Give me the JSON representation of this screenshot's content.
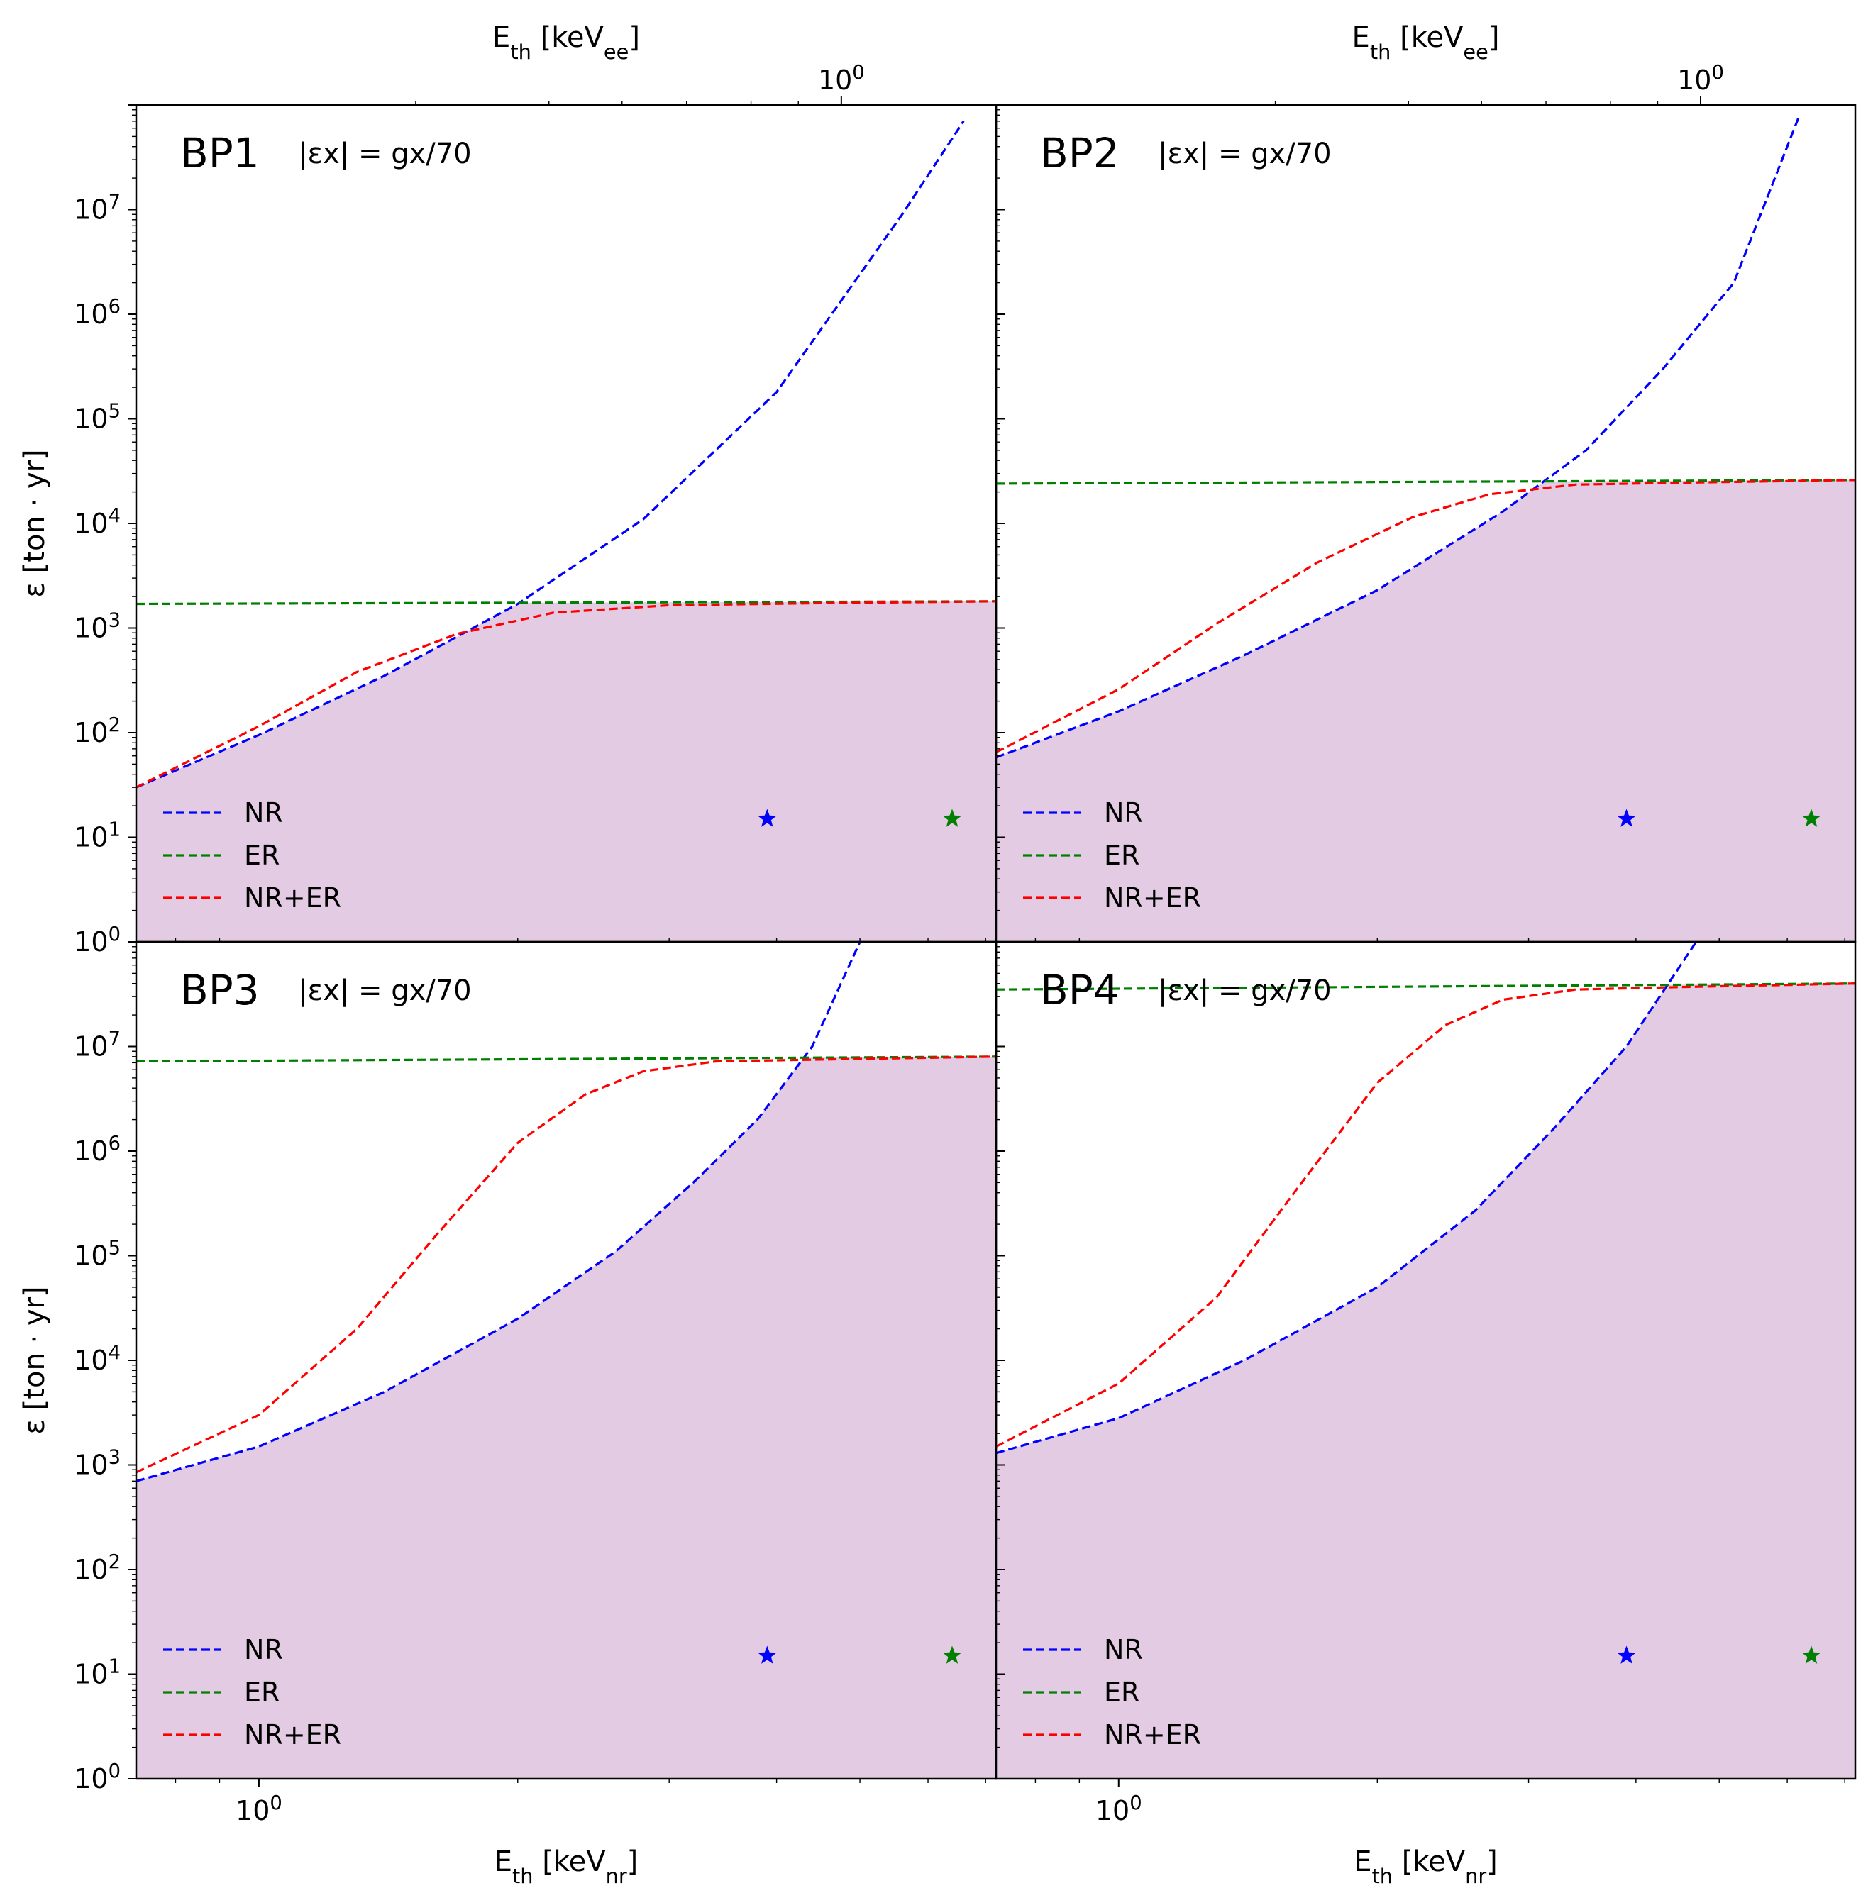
{
  "chart_data": [
    {
      "type": "line",
      "panel": "BP1",
      "annotation": "|εx| = gx/70",
      "x_scale": "log",
      "y_scale": "log",
      "xlim": [
        0.72,
        7.2
      ],
      "ylim": [
        1,
        100000000.0
      ],
      "x_ticks": [
        "10^0"
      ],
      "y_ticks": [
        "10^0",
        "10^1",
        "10^2",
        "10^3",
        "10^4",
        "10^5",
        "10^6",
        "10^7"
      ],
      "top_xlabel": "E_th [keV_ee]",
      "top_x_ticks": [
        "10^0"
      ],
      "ylabel": "ε [ton · yr]",
      "xlabel": "",
      "shaded_region": "below NR+ER minimum (exposure)",
      "stars": [
        {
          "color": "blue",
          "x": 3.9,
          "y": 15
        },
        {
          "color": "green",
          "x": 6.4,
          "y": 15
        }
      ],
      "series": [
        {
          "name": "NR",
          "color": "#0000ff",
          "style": "dashed",
          "x": [
            0.72,
            1.0,
            1.4,
            2.0,
            2.8,
            4.0,
            5.6,
            6.6
          ],
          "y": [
            30,
            95,
            350,
            1700,
            11000,
            180000,
            9000000,
            70000000
          ]
        },
        {
          "name": "ER",
          "color": "#008000",
          "style": "dashed",
          "x": [
            0.72,
            7.2
          ],
          "y": [
            1700,
            1800
          ]
        },
        {
          "name": "NR+ER",
          "color": "#ff0000",
          "style": "dashed",
          "x": [
            0.72,
            1.0,
            1.3,
            1.7,
            2.2,
            3.0,
            4.5,
            7.2
          ],
          "y": [
            30,
            115,
            380,
            880,
            1400,
            1650,
            1730,
            1800
          ]
        }
      ]
    },
    {
      "type": "line",
      "panel": "BP2",
      "annotation": "|εx| = gx/70",
      "x_scale": "log",
      "y_scale": "log",
      "xlim": [
        0.72,
        7.2
      ],
      "ylim": [
        1,
        100000000.0
      ],
      "x_ticks": [
        "10^0"
      ],
      "y_ticks": [],
      "top_xlabel": "E_th [keV_ee]",
      "top_x_ticks": [
        "10^0"
      ],
      "ylabel": "",
      "xlabel": "",
      "shaded_region": "below NR+ER minimum (exposure)",
      "stars": [
        {
          "color": "blue",
          "x": 3.9,
          "y": 15
        },
        {
          "color": "green",
          "x": 6.4,
          "y": 15
        }
      ],
      "series": [
        {
          "name": "NR",
          "color": "#0000ff",
          "style": "dashed",
          "x": [
            0.72,
            1.0,
            1.4,
            2.0,
            2.8,
            3.5,
            4.3,
            5.2,
            6.2
          ],
          "y": [
            58,
            160,
            550,
            2300,
            13000,
            50000,
            300000,
            2000000,
            80000000
          ]
        },
        {
          "name": "ER",
          "color": "#008000",
          "style": "dashed",
          "x": [
            0.72,
            7.2
          ],
          "y": [
            24000,
            26000
          ]
        },
        {
          "name": "NR+ER",
          "color": "#ff0000",
          "style": "dashed",
          "x": [
            0.72,
            1.0,
            1.3,
            1.7,
            2.2,
            2.7,
            3.4,
            4.5,
            7.2
          ],
          "y": [
            65,
            260,
            1100,
            4200,
            11500,
            19000,
            23500,
            24500,
            26000
          ]
        }
      ]
    },
    {
      "type": "line",
      "panel": "BP3",
      "annotation": "|εx| = gx/70",
      "x_scale": "log",
      "y_scale": "log",
      "xlim": [
        0.72,
        7.2
      ],
      "ylim": [
        1,
        100000000.0
      ],
      "x_ticks": [
        "10^0"
      ],
      "y_ticks": [
        "10^0",
        "10^1",
        "10^2",
        "10^3",
        "10^4",
        "10^5",
        "10^6",
        "10^7"
      ],
      "ylabel": "ε [ton · yr]",
      "xlabel": "E_th [keV_nr]",
      "shaded_region": "below NR+ER minimum (exposure)",
      "stars": [
        {
          "color": "blue",
          "x": 3.9,
          "y": 15
        },
        {
          "color": "green",
          "x": 6.4,
          "y": 15
        }
      ],
      "series": [
        {
          "name": "NR",
          "color": "#0000ff",
          "style": "dashed",
          "x": [
            0.72,
            1.0,
            1.4,
            2.0,
            2.6,
            3.2,
            3.8,
            4.4,
            5.0
          ],
          "y": [
            700,
            1500,
            5000,
            25000,
            110000,
            500000,
            2000000,
            10000000,
            100000000
          ]
        },
        {
          "name": "ER",
          "color": "#008000",
          "style": "dashed",
          "x": [
            0.72,
            7.2
          ],
          "y": [
            7200000,
            8000000
          ]
        },
        {
          "name": "NR+ER",
          "color": "#ff0000",
          "style": "dashed",
          "x": [
            0.72,
            1.0,
            1.3,
            1.6,
            2.0,
            2.4,
            2.8,
            3.4,
            4.5,
            7.2
          ],
          "y": [
            850,
            3000,
            20000,
            150000,
            1200000,
            3500000,
            5800000,
            7200000,
            7500000,
            8000000
          ]
        }
      ]
    },
    {
      "type": "line",
      "panel": "BP4",
      "annotation": "|εx| = gx/70",
      "x_scale": "log",
      "y_scale": "log",
      "xlim": [
        0.72,
        7.2
      ],
      "ylim": [
        1,
        100000000.0
      ],
      "x_ticks": [
        "10^0"
      ],
      "y_ticks": [],
      "ylabel": "",
      "xlabel": "E_th [keV_nr]",
      "shaded_region": "below NR+ER minimum (exposure)",
      "stars": [
        {
          "color": "blue",
          "x": 3.9,
          "y": 15
        },
        {
          "color": "green",
          "x": 6.4,
          "y": 15
        }
      ],
      "series": [
        {
          "name": "NR",
          "color": "#0000ff",
          "style": "dashed",
          "x": [
            0.72,
            1.0,
            1.4,
            2.0,
            2.6,
            3.2,
            3.9,
            4.7
          ],
          "y": [
            1300,
            2800,
            10000,
            50000,
            270000,
            1600000,
            10000000,
            100000000
          ]
        },
        {
          "name": "ER",
          "color": "#008000",
          "style": "dashed",
          "x": [
            0.72,
            7.2
          ],
          "y": [
            35000000,
            40000000
          ]
        },
        {
          "name": "NR+ER",
          "color": "#ff0000",
          "style": "dashed",
          "x": [
            0.72,
            1.0,
            1.3,
            1.6,
            2.0,
            2.4,
            2.8,
            3.4,
            4.5,
            7.2
          ],
          "y": [
            1500,
            6000,
            40000,
            400000,
            4500000,
            16000000,
            28000000,
            35000000,
            37000000,
            40000000
          ]
        }
      ]
    }
  ]
}
